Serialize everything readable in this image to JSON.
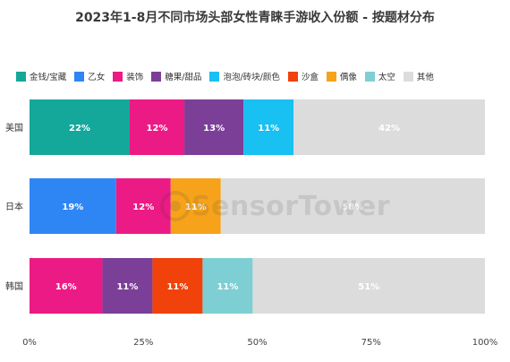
{
  "chart_data": {
    "type": "bar",
    "orientation": "horizontal",
    "stacked": true,
    "title": "2023年1-8月不同市场头部女性青睐手游收入份额 - 按题材分布",
    "categories": [
      "美国",
      "日本",
      "韩国"
    ],
    "x_ticks": [
      "0%",
      "25%",
      "50%",
      "75%",
      "100%"
    ],
    "xlim": [
      0,
      100
    ],
    "grid": false,
    "legend_position": "top",
    "series": [
      {
        "name": "金钱/宝藏",
        "color": "#14A89A",
        "values": [
          22,
          null,
          null
        ],
        "labels": [
          "22%",
          "",
          ""
        ]
      },
      {
        "name": "乙女",
        "color": "#2E86F5",
        "values": [
          null,
          19,
          null
        ],
        "labels": [
          "",
          "19%",
          ""
        ]
      },
      {
        "name": "装饰",
        "color": "#EC1A84",
        "values": [
          12,
          12,
          16
        ],
        "labels": [
          "12%",
          "12%",
          "16%"
        ]
      },
      {
        "name": "糖果/甜品",
        "color": "#7B3F98",
        "values": [
          13,
          null,
          11
        ],
        "labels": [
          "13%",
          "",
          "11%"
        ]
      },
      {
        "name": "泡泡/砖块/颜色",
        "color": "#19C0F2",
        "values": [
          11,
          null,
          null
        ],
        "labels": [
          "11%",
          "",
          ""
        ]
      },
      {
        "name": "沙盒",
        "color": "#F0420A",
        "values": [
          null,
          null,
          11
        ],
        "labels": [
          "",
          "",
          "11%"
        ]
      },
      {
        "name": "偶像",
        "color": "#F6A31B",
        "values": [
          null,
          11,
          null
        ],
        "labels": [
          "",
          "11%",
          ""
        ]
      },
      {
        "name": "太空",
        "color": "#7ECFD3",
        "values": [
          null,
          null,
          11
        ],
        "labels": [
          "",
          "",
          "11%"
        ]
      },
      {
        "name": "其他",
        "color": "#DCDCDC",
        "values": [
          42,
          58,
          51
        ],
        "labels": [
          "42%",
          "58%",
          "51%"
        ]
      }
    ]
  },
  "watermark": {
    "brand": "SensorTower"
  }
}
